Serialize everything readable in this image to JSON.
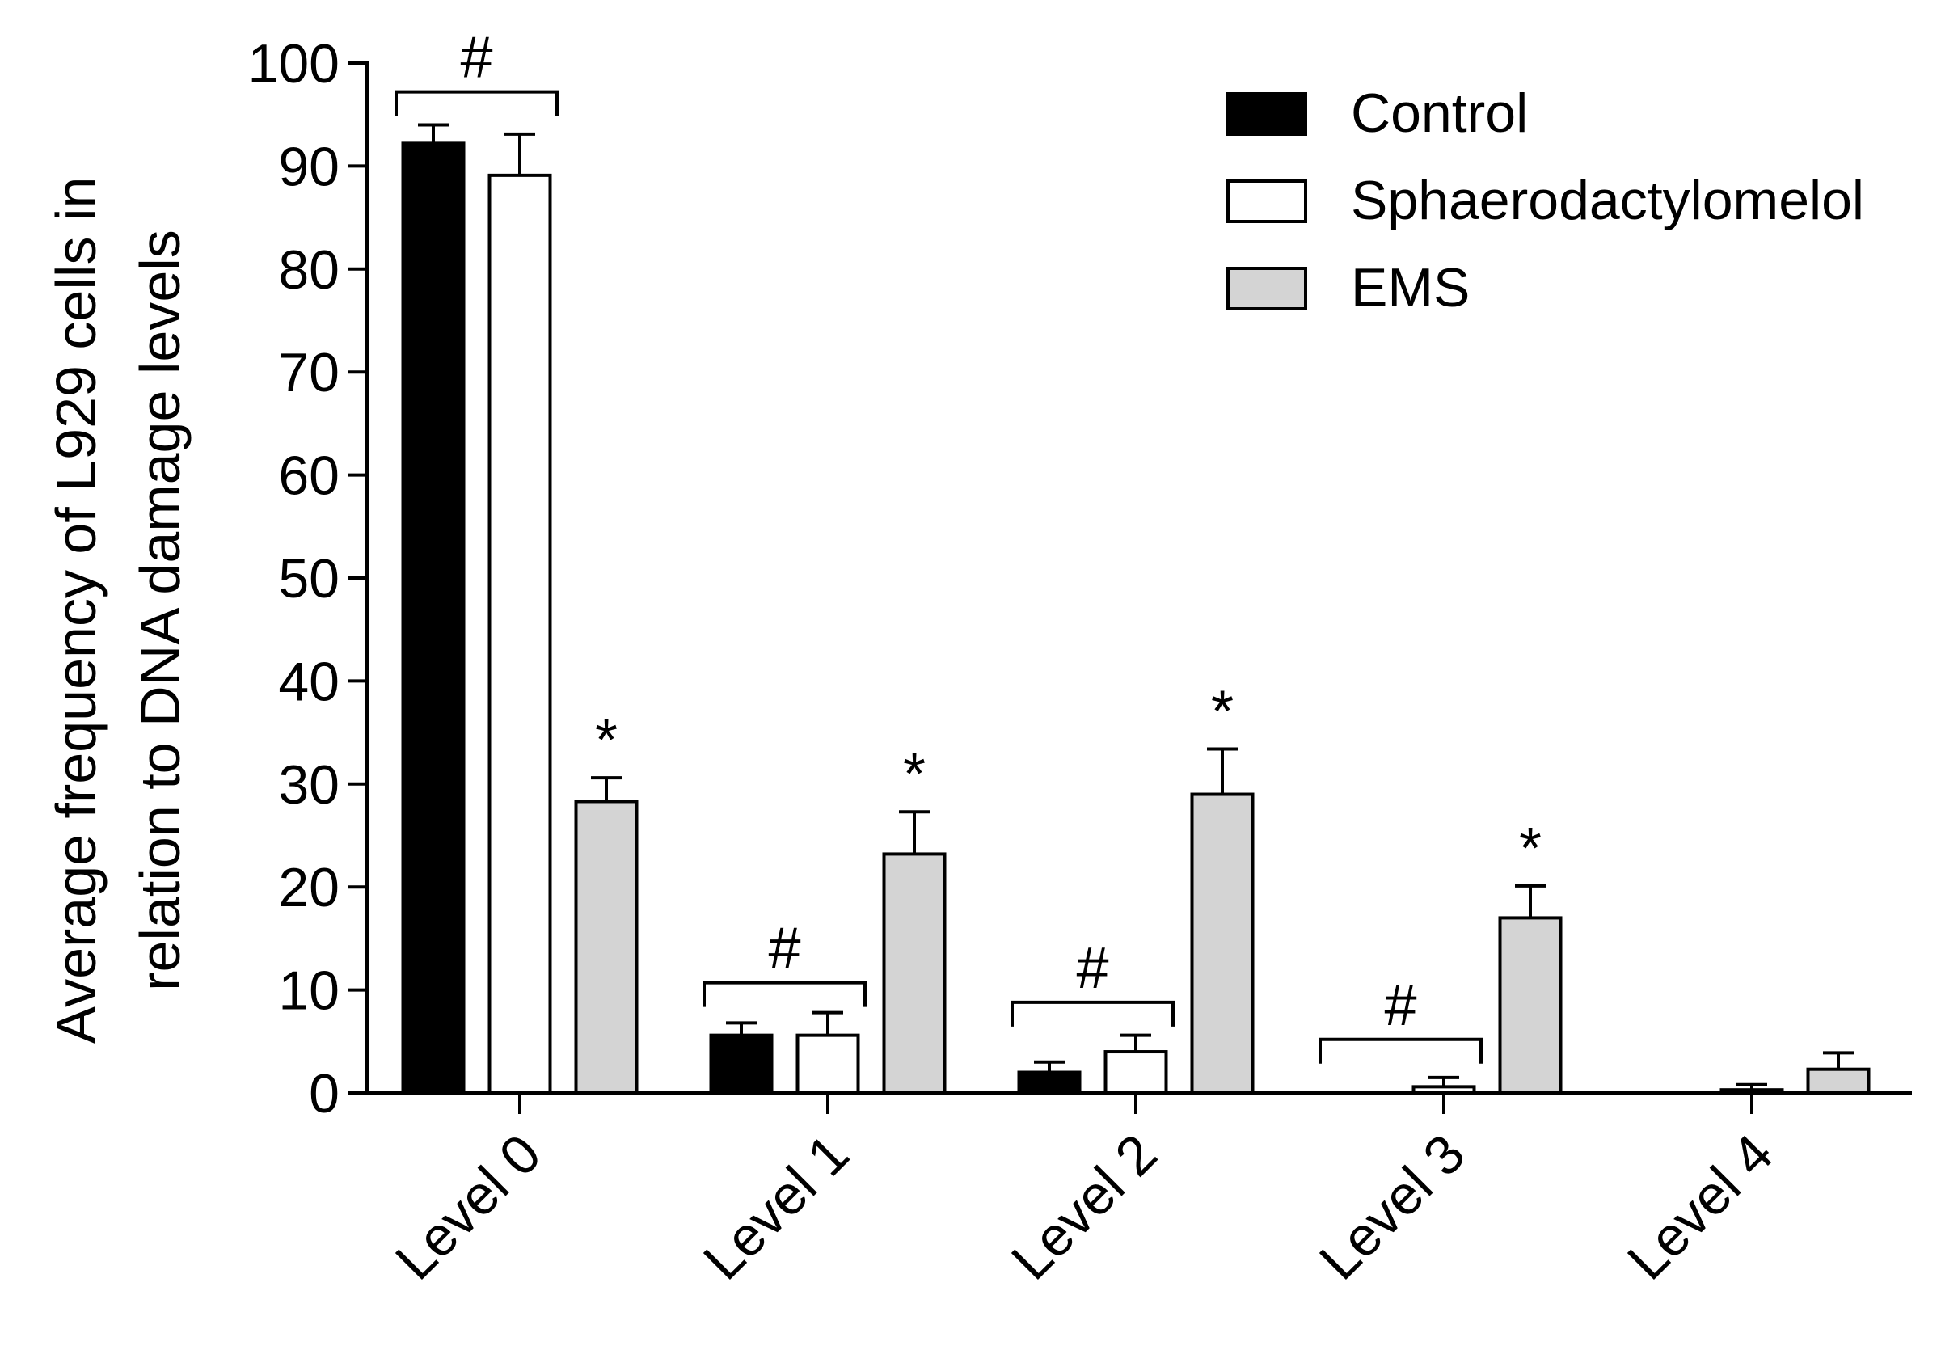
{
  "chart_data": {
    "type": "bar",
    "title": "",
    "xlabel": "",
    "ylabel_lines": [
      "Average frequency of L929 cells in",
      "relation to DNA damage levels"
    ],
    "ylim": [
      0,
      100
    ],
    "yticks": [
      0,
      10,
      20,
      30,
      40,
      50,
      60,
      70,
      80,
      90,
      100
    ],
    "grid": false,
    "legend_position": "top-right",
    "categories": [
      "Level 0",
      "Level 1",
      "Level 2",
      "Level 3",
      "Level 4"
    ],
    "series": [
      {
        "name": "Control",
        "color": "#000000",
        "values": [
          92.2,
          5.6,
          2.0,
          0,
          0
        ],
        "errors": [
          1.8,
          1.2,
          1.0,
          0,
          0
        ]
      },
      {
        "name": "Sphaerodactylomelol",
        "color": "#ffffff",
        "values": [
          89.1,
          5.6,
          4.0,
          0.6,
          0.3
        ],
        "errors": [
          4.0,
          2.2,
          1.6,
          0.9,
          0.5
        ]
      },
      {
        "name": "EMS",
        "color": "#d4d4d4",
        "values": [
          28.3,
          23.2,
          29.0,
          17.0,
          2.3
        ],
        "errors": [
          2.3,
          4.1,
          4.4,
          3.1,
          1.6
        ]
      }
    ],
    "significance_stars": [
      {
        "category": "Level 0",
        "series": "EMS",
        "text": "*"
      },
      {
        "category": "Level 1",
        "series": "EMS",
        "text": "*"
      },
      {
        "category": "Level 2",
        "series": "EMS",
        "text": "*"
      },
      {
        "category": "Level 3",
        "series": "EMS",
        "text": "*"
      }
    ],
    "brackets": [
      {
        "category": "Level 0",
        "text": "#",
        "y": 97.2
      },
      {
        "category": "Level 1",
        "text": "#",
        "y": 10.7
      },
      {
        "category": "Level 2",
        "text": "#",
        "y": 8.8
      },
      {
        "category": "Level 3",
        "text": "#",
        "y": 5.2
      }
    ]
  }
}
